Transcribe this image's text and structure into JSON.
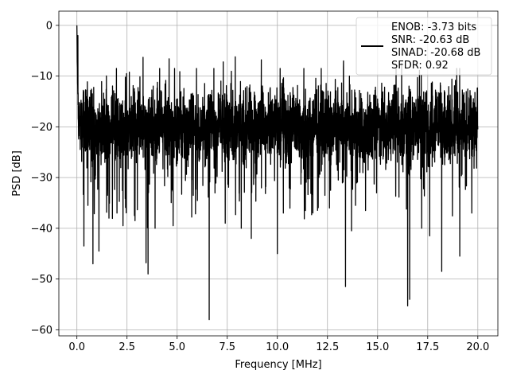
{
  "chart_data": {
    "type": "line",
    "xlabel": "Frequency [MHz]",
    "ylabel": "PSD [dB]",
    "xlim": [
      -0.9,
      21.0
    ],
    "ylim": [
      -61.2,
      2.8
    ],
    "xticks": [
      0.0,
      2.5,
      5.0,
      7.5,
      10.0,
      12.5,
      15.0,
      17.5,
      20.0
    ],
    "xtick_labels": [
      "0.0",
      "2.5",
      "5.0",
      "7.5",
      "10.0",
      "12.5",
      "15.0",
      "17.5",
      "20.0"
    ],
    "yticks": [
      0,
      -10,
      -20,
      -30,
      -40,
      -50,
      -60
    ],
    "ytick_labels": [
      "0",
      "−10",
      "−20",
      "−30",
      "−40",
      "−50",
      "−60"
    ],
    "grid": true,
    "legend": {
      "placement": "top-right",
      "entries": [
        "ENOB: -3.73 bits",
        "SNR: -20.63 dB",
        "SINAD: -20.68 dB",
        "SFDR: 0.92"
      ]
    },
    "series": [
      {
        "color": "#000000",
        "x_range": [
          0.0,
          20.0
        ],
        "noise_floor_db": -20,
        "typical_band_db": [
          -30,
          -10
        ],
        "peak_db": 0.0,
        "notable_dips": [
          {
            "x": 0.35,
            "y": -43.5
          },
          {
            "x": 0.55,
            "y": -35.5
          },
          {
            "x": 0.8,
            "y": -47.0
          },
          {
            "x": 1.1,
            "y": -44.5
          },
          {
            "x": 1.6,
            "y": -38.0
          },
          {
            "x": 2.0,
            "y": -37.0
          },
          {
            "x": 2.3,
            "y": -39.5
          },
          {
            "x": 2.9,
            "y": -38.5
          },
          {
            "x": 3.45,
            "y": -46.8
          },
          {
            "x": 3.55,
            "y": -49.0
          },
          {
            "x": 3.9,
            "y": -40.0
          },
          {
            "x": 4.8,
            "y": -39.5
          },
          {
            "x": 6.6,
            "y": -58.0
          },
          {
            "x": 7.4,
            "y": -39.0
          },
          {
            "x": 8.2,
            "y": -40.0
          },
          {
            "x": 8.7,
            "y": -42.0
          },
          {
            "x": 10.0,
            "y": -45.0
          },
          {
            "x": 10.3,
            "y": -37.0
          },
          {
            "x": 11.4,
            "y": -36.5
          },
          {
            "x": 12.6,
            "y": -36.0
          },
          {
            "x": 13.4,
            "y": -51.5
          },
          {
            "x": 13.7,
            "y": -40.5
          },
          {
            "x": 13.9,
            "y": -35.5
          },
          {
            "x": 14.4,
            "y": -36.5
          },
          {
            "x": 16.5,
            "y": -55.3
          },
          {
            "x": 16.6,
            "y": -54.0
          },
          {
            "x": 17.2,
            "y": -40.0
          },
          {
            "x": 17.6,
            "y": -41.5
          },
          {
            "x": 18.2,
            "y": -48.5
          },
          {
            "x": 19.1,
            "y": -45.5
          },
          {
            "x": 19.7,
            "y": -37.0
          }
        ],
        "notable_peaks": [
          {
            "x": 0.0,
            "y": 0.0
          },
          {
            "x": 0.05,
            "y": -2.0
          },
          {
            "x": 3.3,
            "y": -6.3
          },
          {
            "x": 4.6,
            "y": -6.6
          },
          {
            "x": 7.3,
            "y": -7.2
          },
          {
            "x": 7.9,
            "y": -6.2
          },
          {
            "x": 9.2,
            "y": -6.8
          },
          {
            "x": 13.3,
            "y": -7.0
          },
          {
            "x": 16.2,
            "y": -7.5
          }
        ]
      }
    ]
  }
}
